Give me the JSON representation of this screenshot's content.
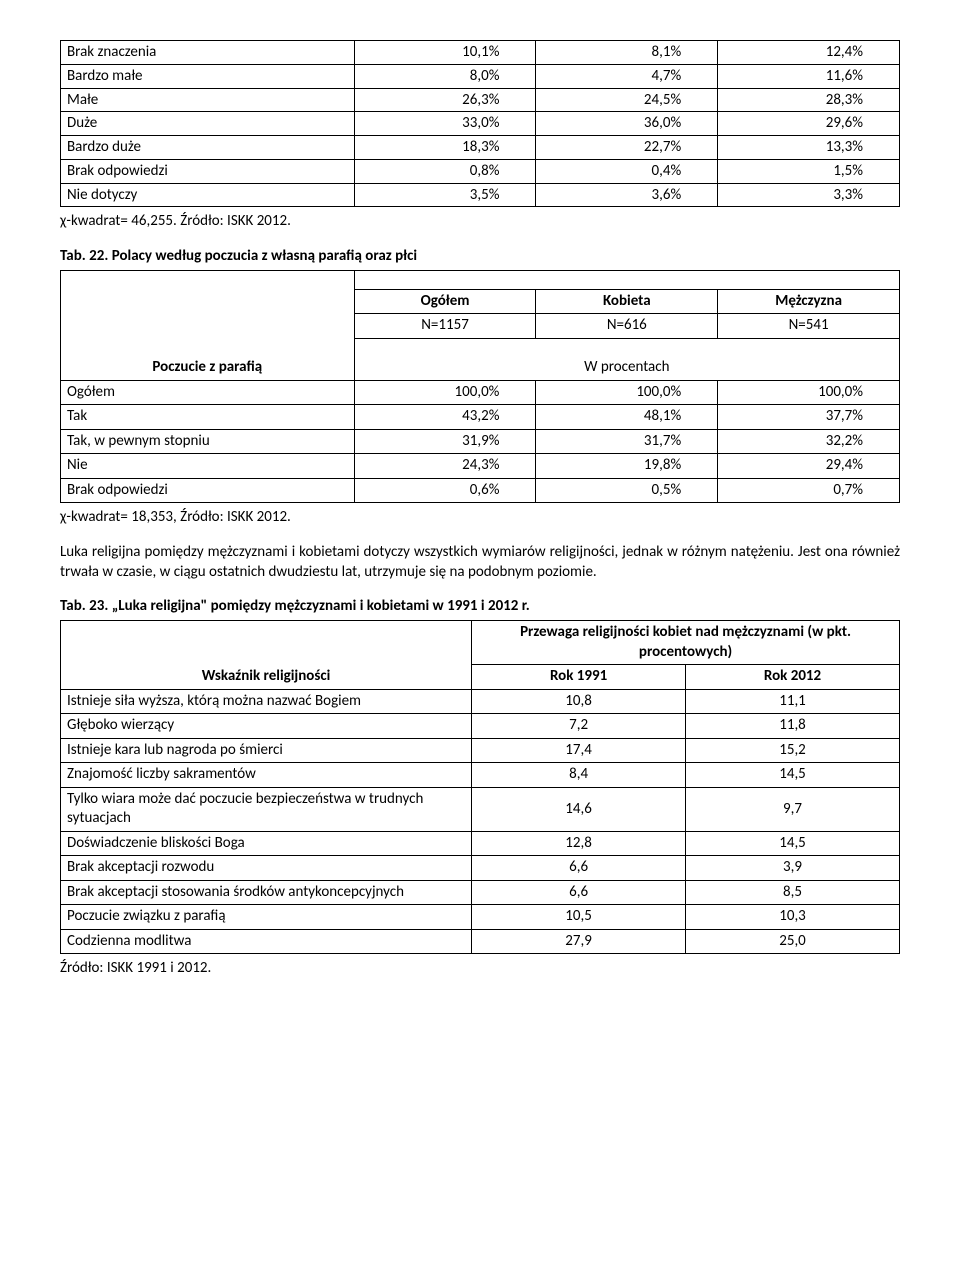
{
  "table1": {
    "rows": [
      {
        "label": "Brak znaczenia",
        "c1": "10,1%",
        "c2": "8,1%",
        "c3": "12,4%"
      },
      {
        "label": "Bardzo małe",
        "c1": "8,0%",
        "c2": "4,7%",
        "c3": "11,6%"
      },
      {
        "label": "Małe",
        "c1": "26,3%",
        "c2": "24,5%",
        "c3": "28,3%"
      },
      {
        "label": "Duże",
        "c1": "33,0%",
        "c2": "36,0%",
        "c3": "29,6%"
      },
      {
        "label": "Bardzo duże",
        "c1": "18,3%",
        "c2": "22,7%",
        "c3": "13,3%"
      },
      {
        "label": "Brak odpowiedzi",
        "c1": "0,8%",
        "c2": "0,4%",
        "c3": "1,5%"
      },
      {
        "label": "Nie dotyczy",
        "c1": "3,5%",
        "c2": "3,6%",
        "c3": "3,3%"
      }
    ],
    "footer": "χ-kwadrat= 46,255. Źródło: ISKK 2012."
  },
  "table2": {
    "caption": "Tab. 22. Polacy według poczucia z własną parafią oraz płci",
    "col_head": [
      "Ogółem",
      "Kobieta",
      "Mężczyzna"
    ],
    "col_n": [
      "N=1157",
      "N=616",
      "N=541"
    ],
    "row_head": "Poczucie z parafią",
    "sub_head": "W procentach",
    "rows": [
      {
        "label": "Ogółem",
        "c1": "100,0%",
        "c2": "100,0%",
        "c3": "100,0%"
      },
      {
        "label": "Tak",
        "c1": "43,2%",
        "c2": "48,1%",
        "c3": "37,7%"
      },
      {
        "label": "Tak, w pewnym stopniu",
        "c1": "31,9%",
        "c2": "31,7%",
        "c3": "32,2%"
      },
      {
        "label": "Nie",
        "c1": "24,3%",
        "c2": "19,8%",
        "c3": "29,4%"
      },
      {
        "label": "Brak odpowiedzi",
        "c1": "0,6%",
        "c2": "0,5%",
        "c3": "0,7%"
      }
    ],
    "footer": "χ-kwadrat= 18,353, Źródło: ISKK 2012."
  },
  "para": "Luka religijna pomiędzy mężczyznami i kobietami dotyczy wszystkich wymiarów religijności, jednak w różnym natężeniu. Jest ona również trwała w czasie, w ciągu ostatnich dwudziestu lat, utrzymuje się na podobnym poziomie.",
  "table3": {
    "caption": "Tab. 23. „Luka religijna\" pomiędzy mężczyznami i kobietami w 1991 i 2012 r.",
    "super_head": "Przewaga religijności kobiet nad mężczyznami (w pkt. procentowych)",
    "row_head": "Wskaźnik religijności",
    "col_head": [
      "Rok 1991",
      "Rok 2012"
    ],
    "rows": [
      {
        "label": "Istnieje siła wyższa, którą można nazwać Bogiem",
        "c1": "10,8",
        "c2": "11,1"
      },
      {
        "label": "Głęboko wierzący",
        "c1": "7,2",
        "c2": "11,8"
      },
      {
        "label": "Istnieje kara lub nagroda po śmierci",
        "c1": "17,4",
        "c2": "15,2"
      },
      {
        "label": "Znajomość liczby sakramentów",
        "c1": "8,4",
        "c2": "14,5"
      },
      {
        "label": "Tylko wiara może dać poczucie bezpieczeństwa w trudnych sytuacjach",
        "c1": "14,6",
        "c2": "9,7"
      },
      {
        "label": "Doświadczenie bliskości Boga",
        "c1": "12,8",
        "c2": "14,5"
      },
      {
        "label": "Brak akceptacji rozwodu",
        "c1": "6,6",
        "c2": "3,9"
      },
      {
        "label": "Brak akceptacji stosowania środków antykoncepcyjnych",
        "c1": "6,6",
        "c2": "8,5"
      },
      {
        "label": "Poczucie związku z parafią",
        "c1": "10,5",
        "c2": "10,3"
      },
      {
        "label": "Codzienna modlitwa",
        "c1": "27,9",
        "c2": "25,0"
      }
    ],
    "footer": "Źródło: ISKK 1991 i 2012."
  }
}
